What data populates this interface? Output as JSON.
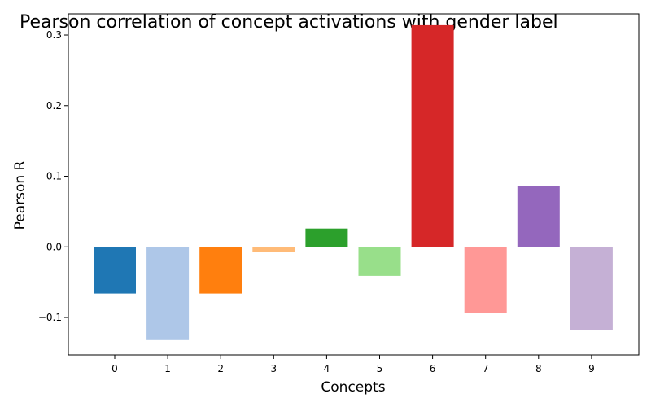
{
  "chart_data": {
    "type": "bar",
    "title": "Pearson correlation of concept activations with gender label",
    "xlabel": "Concepts",
    "ylabel": "Pearson R",
    "categories": [
      "0",
      "1",
      "2",
      "3",
      "4",
      "5",
      "6",
      "7",
      "8",
      "9"
    ],
    "values": [
      -0.066,
      -0.132,
      -0.066,
      -0.007,
      0.026,
      -0.041,
      0.314,
      -0.093,
      0.086,
      -0.118
    ],
    "colors": [
      "#1f77b4",
      "#aec7e8",
      "#ff7f0e",
      "#ffbb78",
      "#2ca02c",
      "#98df8a",
      "#d62728",
      "#ff9896",
      "#9467bd",
      "#c5b0d5"
    ],
    "yticks": [
      -0.1,
      0.0,
      0.1,
      0.2,
      0.3
    ],
    "ytick_labels": [
      "−0.1",
      "0.0",
      "0.1",
      "0.2",
      "0.3"
    ],
    "ylim": [
      -0.153,
      0.33
    ],
    "grid": false,
    "legend": "none"
  }
}
